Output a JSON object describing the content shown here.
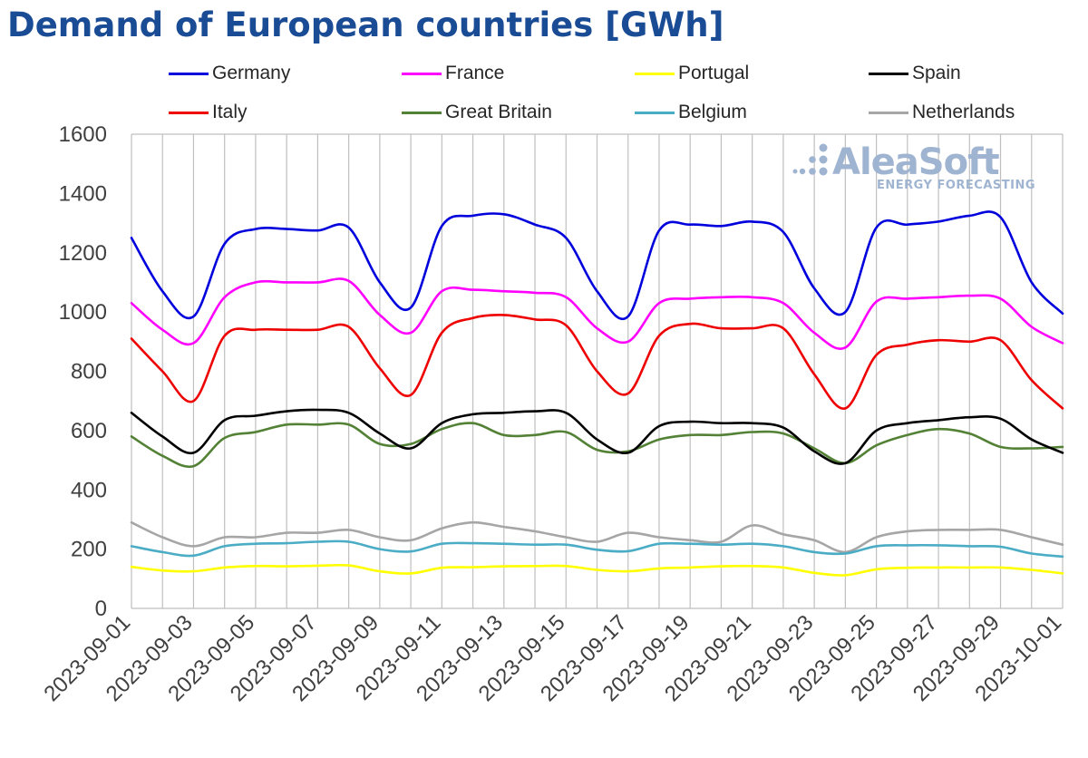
{
  "chart_data": {
    "type": "line",
    "title": "Demand of European countries [GWh]",
    "xlabel": "",
    "ylabel": "",
    "ylim": [
      0,
      1600
    ],
    "yticks": [
      0,
      200,
      400,
      600,
      800,
      1000,
      1200,
      1400,
      1600
    ],
    "xlim": [
      "2023-09-01",
      "2023-10-01"
    ],
    "xticks": [
      "2023-09-01",
      "2023-09-03",
      "2023-09-05",
      "2023-09-07",
      "2023-09-09",
      "2023-09-11",
      "2023-09-13",
      "2023-09-15",
      "2023-09-17",
      "2023-09-19",
      "2023-09-21",
      "2023-09-23",
      "2023-09-25",
      "2023-09-27",
      "2023-09-29",
      "2023-10-01"
    ],
    "grid": "vertical",
    "legend_position": "top",
    "x": [
      "2023-09-01",
      "2023-09-02",
      "2023-09-03",
      "2023-09-04",
      "2023-09-05",
      "2023-09-06",
      "2023-09-07",
      "2023-09-08",
      "2023-09-09",
      "2023-09-10",
      "2023-09-11",
      "2023-09-12",
      "2023-09-13",
      "2023-09-14",
      "2023-09-15",
      "2023-09-16",
      "2023-09-17",
      "2023-09-18",
      "2023-09-19",
      "2023-09-20",
      "2023-09-21",
      "2023-09-22",
      "2023-09-23",
      "2023-09-24",
      "2023-09-25",
      "2023-09-26",
      "2023-09-27",
      "2023-09-28",
      "2023-09-29",
      "2023-09-30",
      "2023-10-01"
    ],
    "series": [
      {
        "name": "Germany",
        "color": "#0000dd",
        "values": [
          1250,
          1070,
          985,
          1230,
          1280,
          1280,
          1275,
          1285,
          1100,
          1015,
          1290,
          1325,
          1330,
          1295,
          1250,
          1070,
          985,
          1275,
          1295,
          1290,
          1305,
          1270,
          1080,
          1000,
          1285,
          1295,
          1305,
          1325,
          1320,
          1100,
          995
        ]
      },
      {
        "name": "France",
        "color": "#ff00ff",
        "values": [
          1030,
          940,
          895,
          1050,
          1100,
          1100,
          1100,
          1105,
          990,
          930,
          1070,
          1075,
          1070,
          1065,
          1050,
          945,
          900,
          1030,
          1045,
          1050,
          1050,
          1030,
          930,
          880,
          1035,
          1045,
          1050,
          1055,
          1045,
          950,
          895
        ]
      },
      {
        "name": "Portugal",
        "color": "#ffff00",
        "values": [
          140,
          128,
          125,
          138,
          143,
          142,
          144,
          145,
          125,
          118,
          137,
          139,
          142,
          143,
          143,
          130,
          125,
          135,
          138,
          142,
          143,
          138,
          120,
          112,
          132,
          137,
          138,
          138,
          138,
          130,
          118
        ]
      },
      {
        "name": "Spain",
        "color": "#000000",
        "values": [
          660,
          580,
          525,
          635,
          650,
          665,
          670,
          660,
          590,
          540,
          625,
          655,
          660,
          665,
          660,
          570,
          525,
          615,
          630,
          625,
          625,
          610,
          530,
          490,
          600,
          625,
          635,
          645,
          640,
          570,
          525
        ]
      },
      {
        "name": "Italy",
        "color": "#ee0000",
        "values": [
          910,
          800,
          700,
          920,
          940,
          940,
          940,
          950,
          810,
          720,
          930,
          980,
          990,
          975,
          955,
          800,
          725,
          920,
          960,
          945,
          945,
          945,
          790,
          675,
          855,
          890,
          905,
          900,
          905,
          770,
          675
        ]
      },
      {
        "name": "Great Britain",
        "color": "#538135",
        "values": [
          580,
          515,
          480,
          575,
          595,
          620,
          620,
          620,
          555,
          555,
          605,
          625,
          585,
          585,
          595,
          535,
          530,
          570,
          585,
          585,
          595,
          590,
          540,
          490,
          550,
          585,
          605,
          590,
          545,
          540,
          545
        ]
      },
      {
        "name": "Belgium",
        "color": "#4bacc6",
        "values": [
          210,
          190,
          178,
          210,
          218,
          220,
          225,
          225,
          200,
          192,
          218,
          220,
          218,
          215,
          215,
          198,
          193,
          218,
          218,
          215,
          218,
          210,
          190,
          185,
          210,
          213,
          213,
          210,
          208,
          185,
          175
        ]
      },
      {
        "name": "Netherlands",
        "color": "#a6a6a6",
        "values": [
          290,
          240,
          210,
          240,
          240,
          255,
          255,
          265,
          240,
          230,
          270,
          290,
          275,
          260,
          240,
          225,
          255,
          240,
          230,
          225,
          280,
          250,
          230,
          190,
          240,
          260,
          265,
          265,
          265,
          240,
          215
        ]
      }
    ]
  },
  "watermark": {
    "name": "AleaSoft",
    "tagline": "ENERGY FORECASTING"
  }
}
